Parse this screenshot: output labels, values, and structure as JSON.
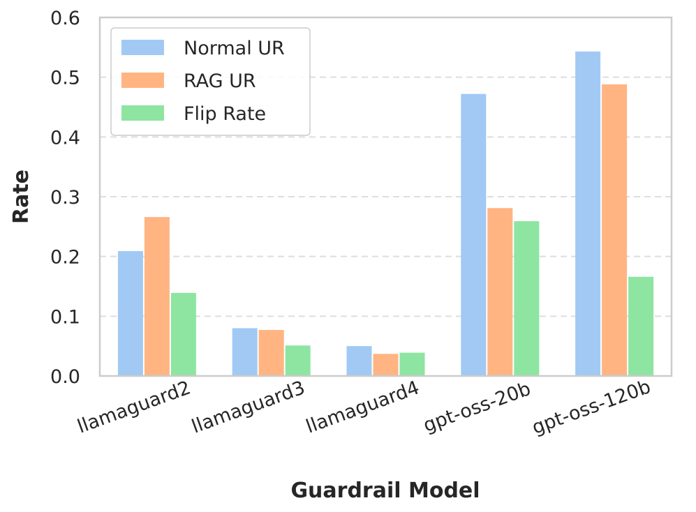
{
  "chart_data": {
    "type": "bar",
    "title": "",
    "xlabel": "Guardrail Model",
    "ylabel": "Rate",
    "categories": [
      "llamaguard2",
      "llamaguard3",
      "llamaguard4",
      "gpt-oss-20b",
      "gpt-oss-120b"
    ],
    "series": [
      {
        "name": "Normal UR",
        "color": "#a1c9f4",
        "values": [
          0.209,
          0.08,
          0.05,
          0.472,
          0.543
        ]
      },
      {
        "name": "RAG UR",
        "color": "#ffb482",
        "values": [
          0.266,
          0.077,
          0.037,
          0.281,
          0.488
        ]
      },
      {
        "name": "Flip Rate",
        "color": "#8de5a1",
        "values": [
          0.139,
          0.051,
          0.039,
          0.259,
          0.166
        ]
      }
    ],
    "ylim": [
      0,
      0.6
    ],
    "yticks": [
      "0.0",
      "0.1",
      "0.2",
      "0.3",
      "0.4",
      "0.5",
      "0.6"
    ],
    "grid": "horizontal-dashed",
    "legend_position": "top-left"
  }
}
